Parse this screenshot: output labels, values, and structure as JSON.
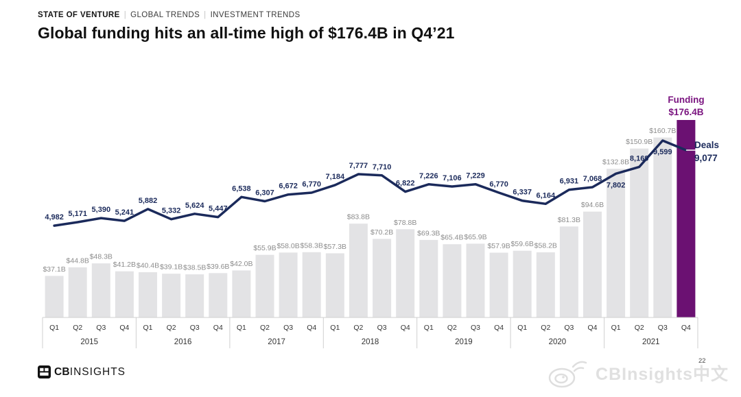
{
  "breadcrumb": {
    "primary": "STATE OF VENTURE",
    "separator": "|",
    "items": [
      "GLOBAL TRENDS",
      "INVESTMENT TRENDS"
    ]
  },
  "title": "Global funding hits an all-time high of $176.4B in Q4’21",
  "chart_data": {
    "type": "bar+line",
    "title": "Global funding hits an all-time high of $176.4B in Q4’21",
    "years": [
      "2015",
      "2016",
      "2017",
      "2018",
      "2019",
      "2020",
      "2021"
    ],
    "quarters_per_year": [
      "Q1",
      "Q2",
      "Q3",
      "Q4"
    ],
    "grid": false,
    "series": [
      {
        "name": "Funding",
        "type": "bar",
        "unit": "$B",
        "values": [
          37.1,
          44.8,
          48.3,
          41.2,
          40.4,
          39.1,
          38.5,
          39.6,
          42.0,
          55.9,
          58.0,
          58.3,
          57.3,
          83.8,
          70.2,
          78.8,
          69.3,
          65.4,
          65.9,
          57.9,
          59.6,
          58.2,
          81.3,
          94.6,
          132.8,
          150.9,
          160.7,
          176.4
        ],
        "labels": [
          "$37.1B",
          "$44.8B",
          "$48.3B",
          "$41.2B",
          "$40.4B",
          "$39.1B",
          "$38.5B",
          "$39.6B",
          "$42.0B",
          "$55.9B",
          "$58.0B",
          "$58.3B",
          "$57.3B",
          "$83.8B",
          "$70.2B",
          "$78.8B",
          "$69.3B",
          "$65.4B",
          "$65.9B",
          "$57.9B",
          "$59.6B",
          "$58.2B",
          "$81.3B",
          "$94.6B",
          "$132.8B",
          "$150.9B",
          "$160.7B",
          ""
        ],
        "ylim": [
          0,
          180
        ],
        "highlight_index": 27
      },
      {
        "name": "Deals",
        "type": "line",
        "values": [
          4982,
          5171,
          5390,
          5241,
          5882,
          5332,
          5624,
          5447,
          6538,
          6307,
          6672,
          6770,
          7184,
          7777,
          7710,
          6822,
          7226,
          7106,
          7229,
          6770,
          6337,
          6164,
          6931,
          7068,
          7802,
          8169,
          9599,
          9077
        ],
        "labels": [
          "4,982",
          "5,171",
          "5,390",
          "5,241",
          "5,882",
          "5,332",
          "5,624",
          "5,447",
          "6,538",
          "6,307",
          "6,672",
          "6,770",
          "7,184",
          "7,777",
          "7,710",
          "6,822",
          "7,226",
          "7,106",
          "7,229",
          "6,770",
          "6,337",
          "6,164",
          "6,931",
          "7,068",
          "7,802",
          "8,169",
          "9,599",
          ""
        ],
        "ylim": [
          0,
          9600
        ],
        "label_below_indices": [
          24,
          26
        ]
      }
    ],
    "annotations": {
      "funding": {
        "title": "Funding",
        "value": "$176.4B"
      },
      "deals": {
        "title": "Deals",
        "value": "9,077"
      }
    },
    "colors": {
      "bar": "#E3E3E5",
      "bar_highlight": "#6B1172",
      "line": "#1B2A5B",
      "funding_label": "#8C8C8C",
      "deals_label": "#1B2A5B",
      "axis_line": "#CFCFCF",
      "axis_text": "#333333",
      "funding_annotation": "#7B1580",
      "deals_annotation": "#1B2A5B"
    },
    "legend_position": "none"
  },
  "footer": {
    "logo_bold": "CB",
    "logo_rest": "INSIGHTS",
    "watermark": "CBInsights中文",
    "page_number": "22"
  }
}
